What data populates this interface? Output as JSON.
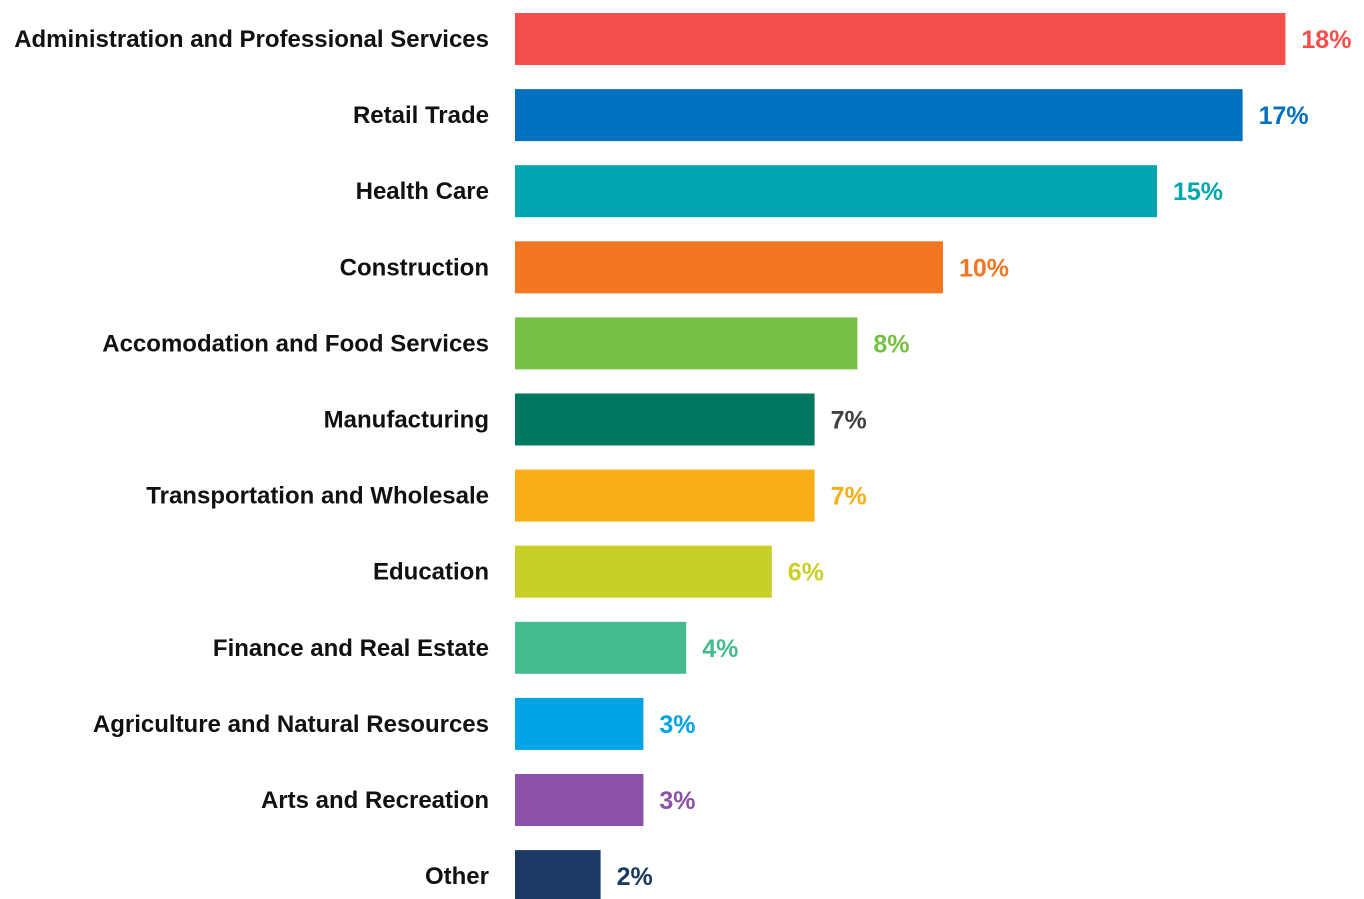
{
  "chart_data": {
    "type": "bar",
    "orientation": "horizontal",
    "title": "",
    "xlabel": "",
    "ylabel": "",
    "grid": false,
    "categories": [
      "Administration and Professional Services",
      "Retail Trade",
      "Health Care",
      "Construction",
      "Accomodation and Food Services",
      "Manufacturing",
      "Transportation and Wholesale",
      "Education",
      "Finance and Real Estate",
      "Agriculture and Natural Resources",
      "Arts and Recreation",
      "Other"
    ],
    "values": [
      18,
      17,
      15,
      10,
      8,
      7,
      7,
      6,
      4,
      3,
      3,
      2
    ],
    "value_labels": [
      "18%",
      "17%",
      "15%",
      "10%",
      "8%",
      "7%",
      "7%",
      "6%",
      "4%",
      "3%",
      "3%",
      "2%"
    ],
    "bar_colors": [
      "#f44f4a",
      "#0070bf",
      "#00a7b0",
      "#f47522",
      "#76c043",
      "#007860",
      "#f9ae18",
      "#c8cf28",
      "#45bc8d",
      "#00a3e4",
      "#8c50a9",
      "#1a3a63"
    ],
    "label_colors": [
      "#f44f4a",
      "#0070bf",
      "#00a7b0",
      "#f47522",
      "#76c043",
      "#404040",
      "#f9ae18",
      "#c8cf28",
      "#45bc8d",
      "#00a3e4",
      "#8c50a9",
      "#1a3a63"
    ]
  }
}
